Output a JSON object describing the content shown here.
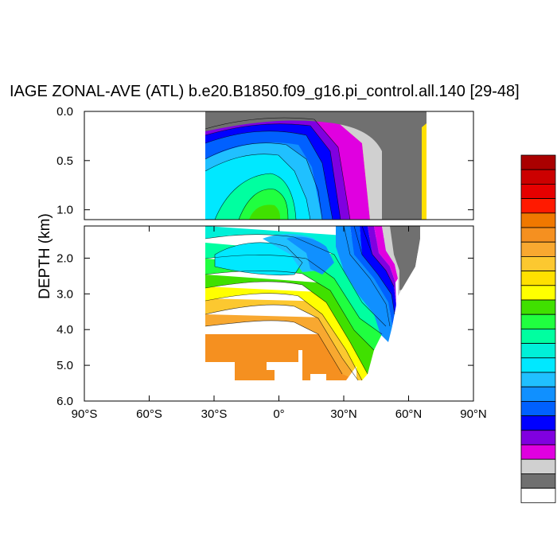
{
  "chart_data": {
    "type": "heatmap",
    "title": "IAGE ZONAL-AVE (ATL) b.e20.B1850.f09_g16.pi_control.all.140 [29-48]",
    "ylabel": "DEPTH (km)",
    "xlabel": "",
    "xlim": [
      -90,
      90
    ],
    "upper_panel_ylim": [
      0.0,
      1.1
    ],
    "lower_panel_ylim": [
      1.1,
      6.0
    ],
    "x_ticks": [
      -90,
      -60,
      -30,
      0,
      30,
      60,
      90
    ],
    "x_tick_labels": [
      "90°S",
      "60°S",
      "30°S",
      "0°",
      "30°N",
      "60°N",
      "90°N"
    ],
    "upper_y_ticks": [
      0.0,
      0.5,
      1.0
    ],
    "upper_y_tick_labels": [
      "0.0",
      "0.5",
      "1.0"
    ],
    "lower_y_ticks": [
      2.0,
      3.0,
      4.0,
      5.0,
      6.0
    ],
    "lower_y_tick_labels": [
      "2.0",
      "3.0",
      "4.0",
      "5.0",
      "6.0"
    ],
    "ocean_lat_range": [
      -34,
      66
    ],
    "colorbar": {
      "colors": [
        "#aa0000",
        "#cc0000",
        "#e60000",
        "#ff1a00",
        "#f07800",
        "#f59020",
        "#f8a830",
        "#fcc830",
        "#ffe000",
        "#ffff00",
        "#40e000",
        "#20ff40",
        "#00ffa0",
        "#00f0d8",
        "#00e8ff",
        "#20c0ff",
        "#1090ff",
        "#0060ff",
        "#0000ff",
        "#8000e0",
        "#e000e0",
        "#d0d0d0",
        "#707070",
        "#ffffff"
      ],
      "labels": []
    },
    "regions": {
      "land": "#707070",
      "ice_light": "#d0d0d0",
      "deep_orange": "#f59020",
      "yellow": "#ffff00",
      "green": "#40e000",
      "cyan": "#00e8ff",
      "blue": "#0000ff",
      "purple": "#8000e0",
      "magenta": "#e000e0"
    }
  }
}
